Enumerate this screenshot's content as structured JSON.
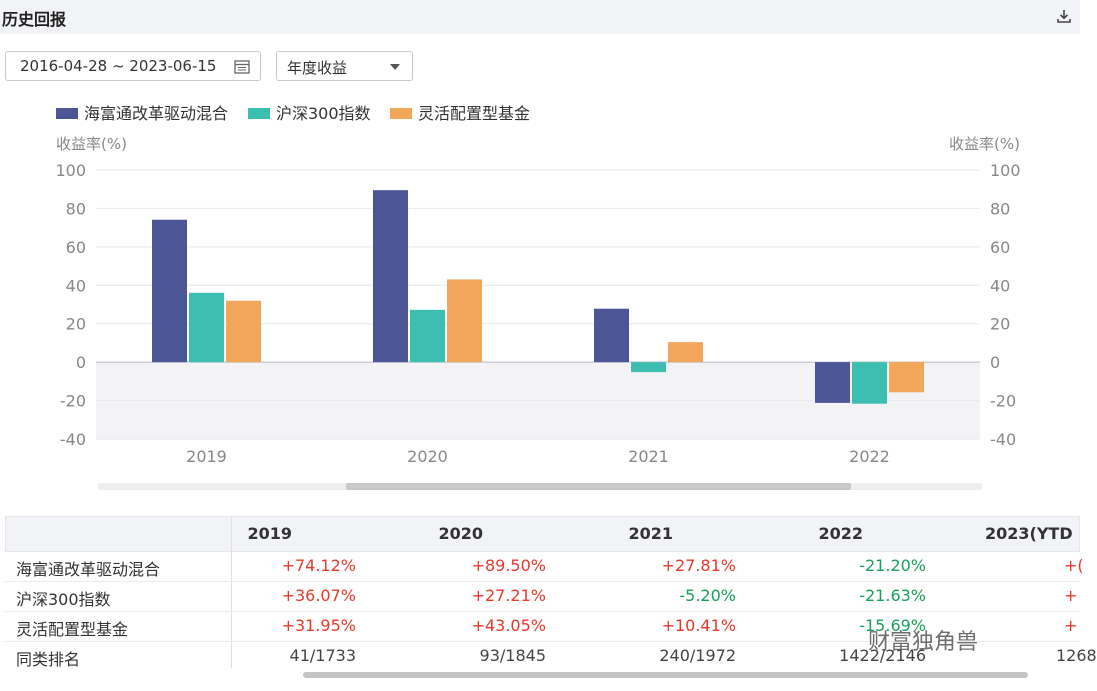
{
  "header": {
    "title": "历史回报"
  },
  "controls": {
    "date_range": "2016-04-28 ~ 2023-06-15",
    "period_select": "年度收益"
  },
  "chart_data": {
    "type": "bar",
    "categories": [
      "2019",
      "2020",
      "2021",
      "2022"
    ],
    "series": [
      {
        "name": "海富通改革驱动混合",
        "color": "#4c5596",
        "values": [
          74.12,
          89.5,
          27.81,
          -21.2
        ]
      },
      {
        "name": "沪深300指数",
        "color": "#3cbfb0",
        "values": [
          36.07,
          27.21,
          -5.2,
          -21.63
        ]
      },
      {
        "name": "灵活配置型基金",
        "color": "#f2a65a",
        "values": [
          31.95,
          43.05,
          10.41,
          -15.69
        ]
      }
    ],
    "ylabel_left": "收益率(%)",
    "ylabel_right": "收益率(%)",
    "ylim": [
      -40,
      100
    ],
    "yticks": [
      100,
      80,
      60,
      40,
      20,
      0,
      -20,
      -40
    ],
    "legend_position": "top-left"
  },
  "table": {
    "columns": [
      "2019",
      "2020",
      "2021",
      "2022",
      "2023(YTD"
    ],
    "rows": [
      {
        "label": "海富通改革驱动混合",
        "values": [
          "+74.12%",
          "+89.50%",
          "+27.81%",
          "-21.20%",
          "+("
        ]
      },
      {
        "label": "沪深300指数",
        "values": [
          "+36.07%",
          "+27.21%",
          "-5.20%",
          "-21.63%",
          "+"
        ]
      },
      {
        "label": "灵活配置型基金",
        "values": [
          "+31.95%",
          "+43.05%",
          "+10.41%",
          "-15.69%",
          "+"
        ]
      },
      {
        "label": "同类排名",
        "values": [
          "41/1733",
          "93/1845",
          "240/1972",
          "1422/2146",
          "1268"
        ]
      }
    ]
  },
  "watermark": "财富独角兽"
}
